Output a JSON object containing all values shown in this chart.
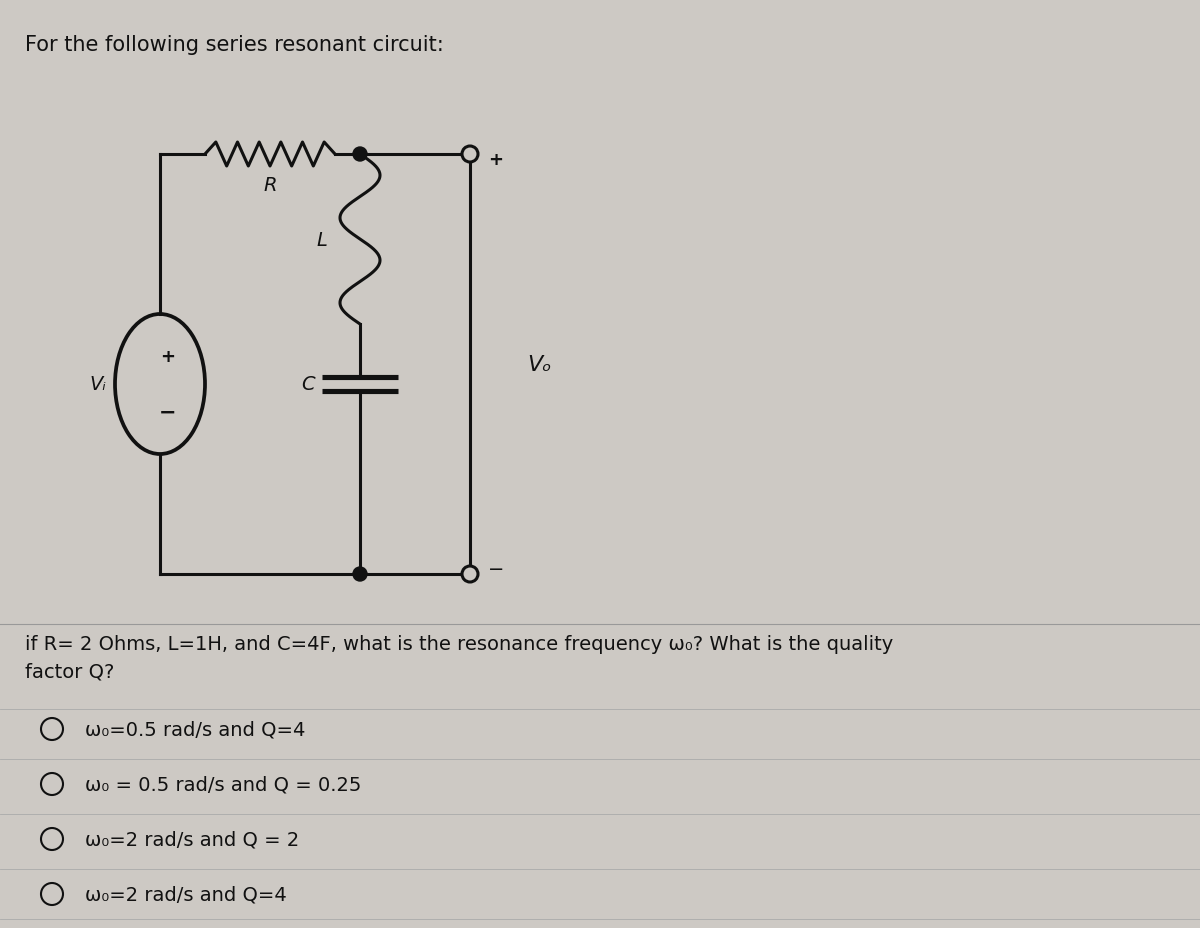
{
  "background_color": "#cdc9c4",
  "title_text": "For the following series resonant circuit:",
  "title_fontsize": 15,
  "question_text": "if R= 2 Ohms, L=1H, and C=4F, what is the resonance frequency ω₀? What is the quality\nfactor Q?",
  "question_fontsize": 14,
  "options": [
    "ω₀=0.5 rad/s and Q=4",
    "ω₀ = 0.5 rad/s and Q = 0.25",
    "ω₀=2 rad/s and Q = 2",
    "ω₀=2 rad/s and Q=4"
  ],
  "options_fontsize": 14,
  "text_color": "#111111",
  "line_color": "#111111",
  "line_width": 2.2
}
